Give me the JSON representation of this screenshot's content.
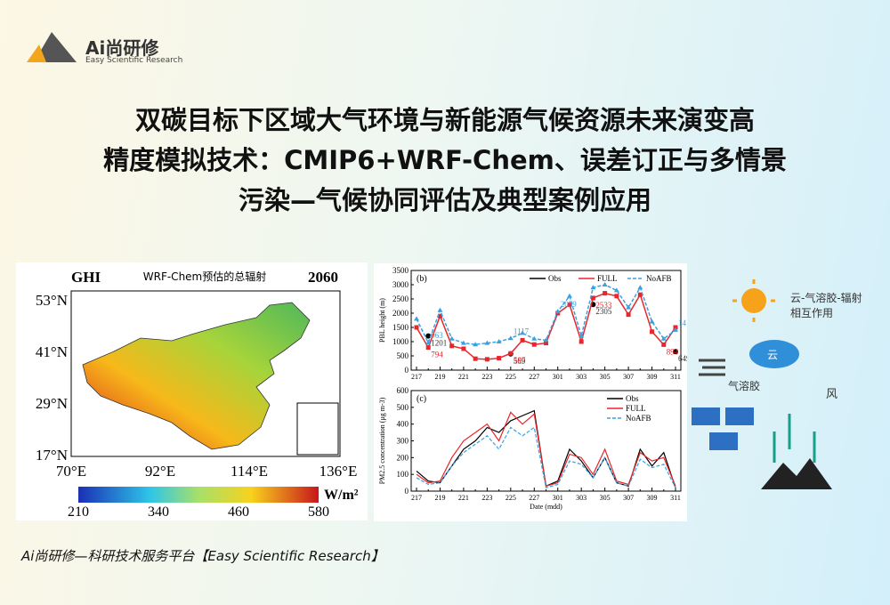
{
  "logo": {
    "brand": "Ai尚研修",
    "tagline": "Easy Scientific Research"
  },
  "title": [
    "双碳目标下区域大气环境与新能源气候资源未来演变高",
    "精度模拟技术：CMIP6+WRF-Chem、误差订正与多情景",
    "污染—气候协同评估及典型案例应用"
  ],
  "map": {
    "variable": "GHI",
    "caption": "WRF-Chem预估的总辐射",
    "year": "2060",
    "lat_labels": [
      "53°N",
      "41°N",
      "29°N",
      "17°N"
    ],
    "lon_labels": [
      "70°E",
      "92°E",
      "114°E",
      "136°E"
    ],
    "colorbar_labels": [
      "210",
      "340",
      "460",
      "580"
    ],
    "unit": "W/m²"
  },
  "pbl_chart": {
    "type": "line",
    "panel": "(b)",
    "ylabel": "PBL height (m)",
    "ylim": [
      0,
      3500
    ],
    "yticks": [
      0,
      500,
      1000,
      1500,
      2000,
      2500,
      3000,
      3500
    ],
    "categories": [
      "217",
      null,
      "219",
      null,
      "221",
      null,
      "223",
      null,
      "225",
      null,
      "227",
      null,
      "301",
      null,
      "303",
      null,
      "305",
      null,
      "307",
      null,
      "309",
      null,
      "311"
    ],
    "series": [
      {
        "name": "Obs",
        "color": "#000000",
        "values": [
          null,
          1201,
          null,
          null,
          null,
          null,
          null,
          null,
          569,
          null,
          null,
          null,
          null,
          null,
          null,
          2305,
          null,
          null,
          null,
          null,
          null,
          null,
          649
        ],
        "value_labels": [
          null,
          "1201",
          null,
          null,
          null,
          null,
          null,
          null,
          "569",
          null,
          null,
          null,
          null,
          null,
          null,
          "2305",
          null,
          null,
          null,
          null,
          null,
          null,
          "649"
        ]
      },
      {
        "name": "FULL",
        "color": "#e8262b",
        "values": [
          1500,
          794,
          1900,
          850,
          750,
          400,
          380,
          420,
          587,
          1050,
          900,
          950,
          2000,
          2300,
          1000,
          2533,
          2700,
          2600,
          1950,
          2650,
          1350,
          894,
          1500
        ],
        "value_labels": [
          null,
          "794",
          null,
          null,
          null,
          null,
          null,
          null,
          "587",
          null,
          null,
          null,
          null,
          null,
          null,
          "2533",
          null,
          null,
          null,
          null,
          null,
          "894",
          null
        ]
      },
      {
        "name": "NoAFB",
        "color": "#3aa0e0",
        "values": [
          1800,
          963,
          2100,
          1100,
          950,
          900,
          950,
          1000,
          1117,
          1300,
          1100,
          1050,
          2059,
          2600,
          1200,
          2900,
          3000,
          2800,
          2200,
          2900,
          1700,
          1100,
          1411
        ],
        "value_labels": [
          null,
          "963",
          null,
          null,
          null,
          null,
          null,
          null,
          "1117",
          null,
          null,
          null,
          "2059",
          null,
          null,
          null,
          null,
          null,
          null,
          null,
          null,
          null,
          "1411"
        ]
      }
    ]
  },
  "pm_chart": {
    "type": "line",
    "panel": "(c)",
    "ylabel": "PM2.5 concentration (μg m-3)",
    "xlabel": "Date (mdd)",
    "ylim": [
      0,
      600
    ],
    "yticks": [
      0,
      100,
      200,
      300,
      400,
      500,
      600
    ],
    "categories": [
      "217",
      null,
      "219",
      null,
      "221",
      null,
      "223",
      null,
      "225",
      null,
      "227",
      null,
      "301",
      null,
      "303",
      null,
      "305",
      null,
      "307",
      null,
      "309",
      null,
      "311"
    ],
    "series": [
      {
        "name": "Obs",
        "color": "#000000",
        "values": [
          120,
          60,
          50,
          150,
          250,
          300,
          380,
          350,
          420,
          450,
          480,
          30,
          60,
          250,
          180,
          80,
          200,
          50,
          30,
          250,
          150,
          230,
          20
        ]
      },
      {
        "name": "FULL",
        "color": "#e8262b",
        "values": [
          100,
          50,
          60,
          200,
          300,
          350,
          400,
          300,
          470,
          400,
          460,
          30,
          50,
          220,
          200,
          100,
          250,
          60,
          40,
          230,
          180,
          200,
          30
        ]
      },
      {
        "name": "NoAFB",
        "color": "#3aa0e0",
        "values": [
          80,
          40,
          50,
          150,
          230,
          280,
          330,
          250,
          380,
          330,
          380,
          20,
          40,
          180,
          160,
          80,
          200,
          50,
          30,
          190,
          140,
          160,
          20
        ]
      }
    ]
  },
  "diagram": {
    "interaction": [
      "云-气溶胶-辐射",
      "相互作用"
    ],
    "cloud": "云",
    "aerosol": "气溶胶",
    "wind": "风"
  },
  "footer": "Ai尚研修—科研技术服务平台【Easy Scientific Research】"
}
